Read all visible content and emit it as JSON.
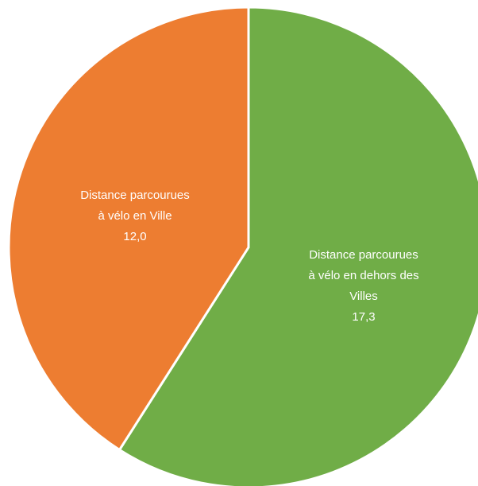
{
  "chart_data": {
    "type": "pie",
    "categories": [
      "Distance parcourues à vélo en dehors des Villes",
      "Distance parcourues à vélo en Ville"
    ],
    "values": [
      17.3,
      12.0
    ],
    "value_labels": [
      "17,3",
      "12,0"
    ],
    "label_lines": [
      [
        "Distance parcourues",
        "à vélo en dehors des",
        "Villes"
      ],
      [
        "Distance parcourues",
        "à vélo en Ville"
      ]
    ],
    "colors": [
      "#70ad47",
      "#ed7d31"
    ],
    "slice_border_color": "#ffffff",
    "legend": false,
    "title": ""
  }
}
